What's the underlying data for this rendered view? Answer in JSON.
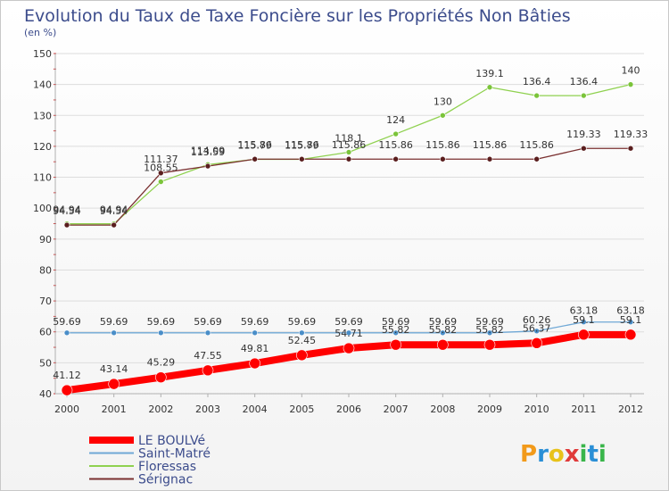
{
  "chart_data": {
    "type": "line",
    "title": "Evolution du Taux de Taxe Foncière sur les Propriétés Non Bâties",
    "ylabel": "(en %)",
    "xlabel": "",
    "ylim": [
      40,
      150
    ],
    "yticks": [
      40,
      50,
      60,
      70,
      80,
      90,
      100,
      110,
      120,
      130,
      140,
      150
    ],
    "categories": [
      "2000",
      "2001",
      "2002",
      "2003",
      "2004",
      "2005",
      "2006",
      "2007",
      "2008",
      "2009",
      "2010",
      "2011",
      "2012"
    ],
    "series": [
      {
        "name": "Floressas",
        "color": "#8fd14f",
        "point_color": "#7bc43a",
        "values": [
          94.94,
          94.94,
          108.55,
          114.09,
          115.79,
          115.79,
          118.1,
          124,
          130,
          139.1,
          136.4,
          136.4,
          140
        ],
        "labels": [
          "94.94",
          "94.94",
          "108.55",
          "114.09",
          "115.79",
          "115.79",
          "118.1",
          "124",
          "130",
          "139.1",
          "136.4",
          "136.4",
          "140"
        ]
      },
      {
        "name": "Sérignac",
        "color": "#7a3030",
        "point_color": "#5a1e1e",
        "values": [
          94.54,
          94.54,
          111.37,
          113.59,
          115.86,
          115.86,
          115.86,
          115.86,
          115.86,
          115.86,
          115.86,
          119.33,
          119.33
        ],
        "labels": [
          "94.54",
          "94.54",
          "111.37",
          "113.59",
          "115.86",
          "115.86",
          "115.86",
          "115.86",
          "115.86",
          "115.86",
          "115.86",
          "119.33",
          "119.33"
        ]
      },
      {
        "name": "Saint-Matré",
        "color": "#6fa8d6",
        "point_color": "#4a8ec8",
        "values": [
          59.69,
          59.69,
          59.69,
          59.69,
          59.69,
          59.69,
          59.69,
          59.69,
          59.69,
          59.69,
          60.26,
          63.18,
          63.18
        ],
        "labels": [
          "59.69",
          "59.69",
          "59.69",
          "59.69",
          "59.69",
          "59.69",
          "59.69",
          "59.69",
          "59.69",
          "59.69",
          "60.26",
          "63.18",
          "63.18"
        ]
      },
      {
        "name": "LE BOULVé",
        "color": "#ff0000",
        "point_color": "#ff0000",
        "values": [
          41.12,
          43.14,
          45.29,
          47.55,
          49.81,
          52.45,
          54.71,
          55.82,
          55.82,
          55.82,
          56.37,
          59.1,
          59.1
        ],
        "labels": [
          "41.12",
          "43.14",
          "45.29",
          "47.55",
          "49.81",
          "52.45",
          "54.71",
          "55.82",
          "55.82",
          "55.82",
          "56.37",
          "59.1",
          "59.1"
        ]
      }
    ],
    "legend": [
      {
        "name": "LE BOULVé",
        "color": "#ff0000"
      },
      {
        "name": "Saint-Matré",
        "color": "#6fa8d6"
      },
      {
        "name": "Floressas",
        "color": "#8fd14f"
      },
      {
        "name": "Sérignac",
        "color": "#7a3030"
      }
    ]
  },
  "logo": {
    "text": "Proxiti"
  }
}
